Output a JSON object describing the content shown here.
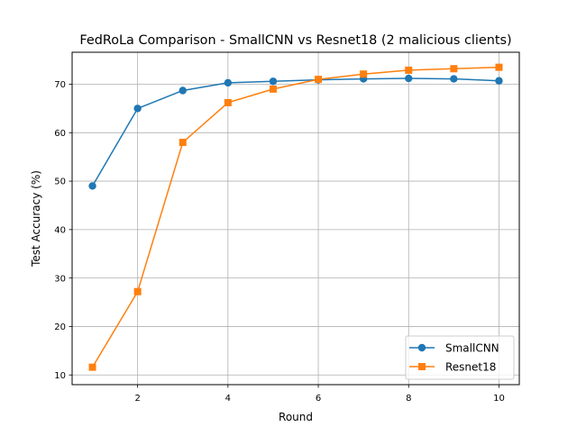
{
  "chart_data": {
    "type": "line",
    "title": "FedRoLa Comparison - SmallCNN vs Resnet18 (2 malicious clients)",
    "xlabel": "Round",
    "ylabel": "Test Accuracy (%)",
    "xlim": [
      0.55,
      10.45
    ],
    "ylim": [
      8.0,
      76.6
    ],
    "xticks": [
      2,
      4,
      6,
      8,
      10
    ],
    "yticks": [
      10,
      20,
      30,
      40,
      50,
      60,
      70
    ],
    "grid": true,
    "legend_position": "lower-right",
    "x": [
      1,
      2,
      3,
      4,
      5,
      6,
      7,
      8,
      9,
      10
    ],
    "series": [
      {
        "name": "SmallCNN",
        "color": "#1f77b4",
        "marker": "circle",
        "values": [
          49.0,
          65.0,
          68.7,
          70.3,
          70.6,
          70.9,
          71.1,
          71.2,
          71.1,
          70.7
        ]
      },
      {
        "name": "Resnet18",
        "color": "#ff7f0e",
        "marker": "square",
        "values": [
          11.6,
          27.2,
          58.0,
          66.2,
          69.0,
          71.0,
          72.1,
          72.9,
          73.2,
          73.5
        ]
      }
    ]
  }
}
